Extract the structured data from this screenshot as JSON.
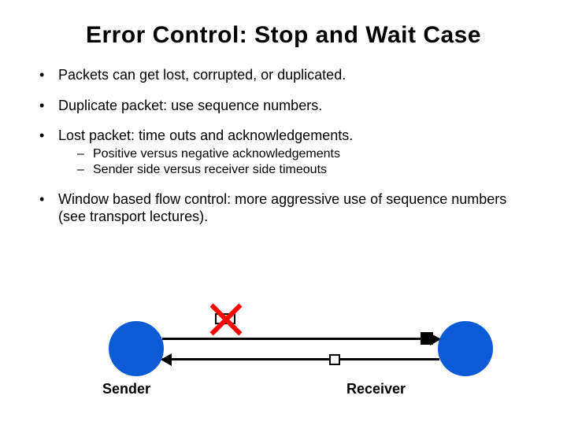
{
  "title": "Error Control: Stop and Wait Case",
  "bullets": {
    "b1": "Packets can get lost, corrupted, or duplicated.",
    "b2": "Duplicate packet: use sequence numbers.",
    "b3": "Lost packet: time outs and acknowledgements.",
    "b3_sub1": "Positive versus negative acknowledgements",
    "b3_sub2": "Sender side versus receiver side timeouts",
    "b4": "Window based flow control: more aggressive use of sequence numbers (see transport lectures)."
  },
  "diagram": {
    "sender_label": "Sender",
    "receiver_label": "Receiver",
    "node_color": "#0b5bd7",
    "x_color": "#ff0000",
    "arrow_color": "#000000"
  }
}
